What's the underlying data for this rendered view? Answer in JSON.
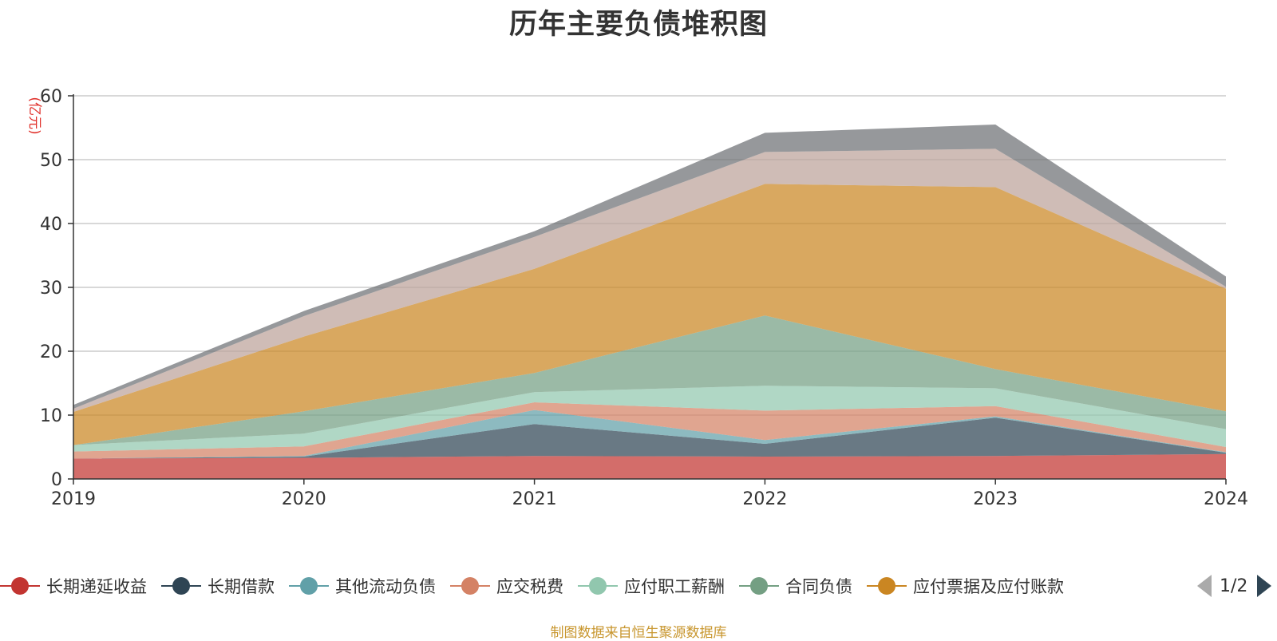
{
  "chart_data": {
    "type": "area",
    "title": "历年主要负债堆积图",
    "ylabel": "(亿元)",
    "xlabel": "",
    "x": [
      "2019",
      "2020",
      "2021",
      "2022",
      "2023",
      "2024"
    ],
    "ylim": [
      0,
      60
    ],
    "yticks": [
      0,
      10,
      20,
      30,
      40,
      50,
      60
    ],
    "stacked": true,
    "grid": true,
    "legend_position": "bottom",
    "series": [
      {
        "name": "长期递延收益",
        "color": "#c23531",
        "values": [
          3.2,
          3.3,
          3.6,
          3.5,
          3.6,
          3.9
        ]
      },
      {
        "name": "长期借款",
        "color": "#2f4554",
        "values": [
          0.0,
          0.2,
          5.0,
          2.0,
          6.0,
          0.2
        ]
      },
      {
        "name": "其他流动负债",
        "color": "#61a0a8",
        "values": [
          0.0,
          0.1,
          2.2,
          0.6,
          0.2,
          0.1
        ]
      },
      {
        "name": "应交税费",
        "color": "#d48265",
        "values": [
          1.1,
          1.5,
          1.2,
          4.6,
          1.6,
          0.8
        ]
      },
      {
        "name": "应付职工薪酬",
        "color": "#91c7ae",
        "values": [
          1.0,
          2.0,
          1.6,
          3.9,
          2.8,
          2.8
        ]
      },
      {
        "name": "合同负债",
        "color": "#749f83",
        "values": [
          0.0,
          3.5,
          3.0,
          11.0,
          3.0,
          2.8
        ]
      },
      {
        "name": "应付票据及应付账款",
        "color": "#ca8622",
        "values": [
          5.2,
          11.7,
          16.3,
          20.6,
          28.5,
          19.2
        ]
      },
      {
        "name": "",
        "color": "#bda29a",
        "values": [
          0.5,
          3.2,
          5.0,
          5.0,
          6.0,
          0.3
        ]
      },
      {
        "name": "",
        "color": "#6e7074",
        "values": [
          0.6,
          0.8,
          0.9,
          3.0,
          3.8,
          1.6
        ]
      }
    ]
  },
  "legend": {
    "page_indicator": "1/2"
  },
  "source_note": "制图数据来自恒生聚源数据库"
}
